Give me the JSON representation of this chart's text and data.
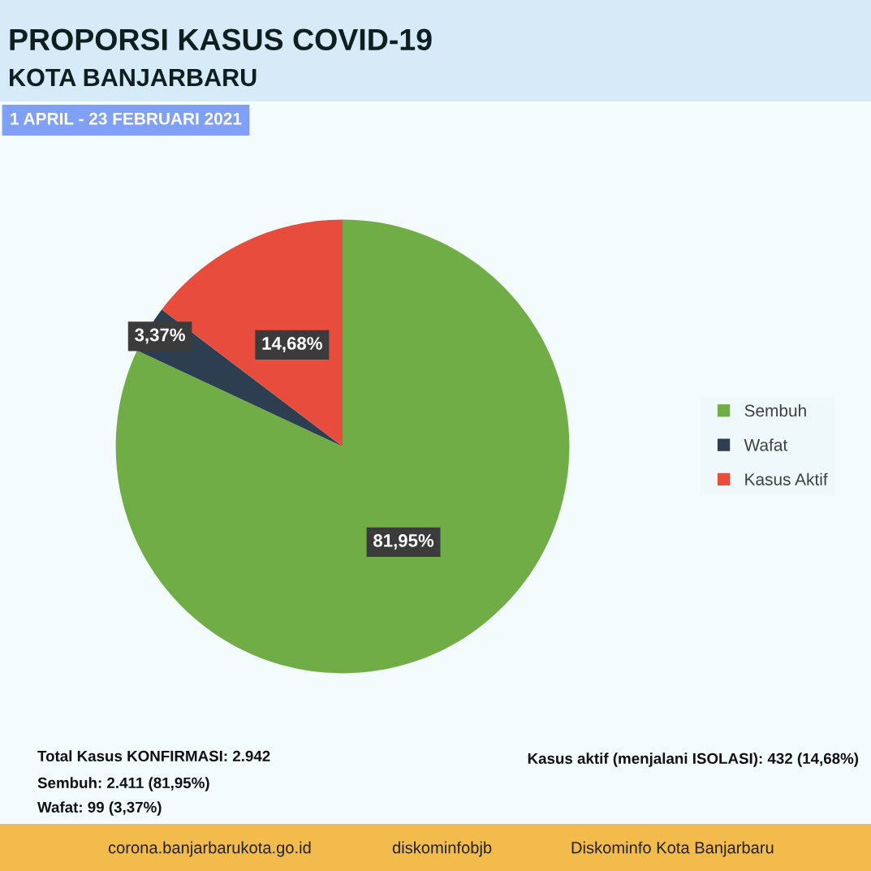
{
  "chart_data": {
    "type": "pie",
    "title": "PROPORSI KASUS COVID-19\nKOTA BANJARBARU",
    "subtitle": "1 APRIL - 23 FEBRUARI 2021",
    "categories": [
      "Sembuh",
      "Wafat",
      "Kasus Aktif"
    ],
    "values": [
      81.95,
      3.37,
      14.68
    ],
    "colors": [
      "#70ad47",
      "#2c3e50",
      "#e74c3c"
    ],
    "value_labels": [
      "81,95%",
      "3,37%",
      "14,68%"
    ],
    "legend": "right",
    "annotations": [
      "Total Kasus KONFIRMASI: 2.942",
      "Sembuh: 2.411 (81,95%)",
      "Wafat: 99 (3,37%)",
      "Kasus aktif (menjalani ISOLASI): 432 (14,68%)",
      "corona.banjarbarukota.go.id",
      "diskominfobjb",
      "Diskominfo Kota Banjarbaru"
    ]
  }
}
